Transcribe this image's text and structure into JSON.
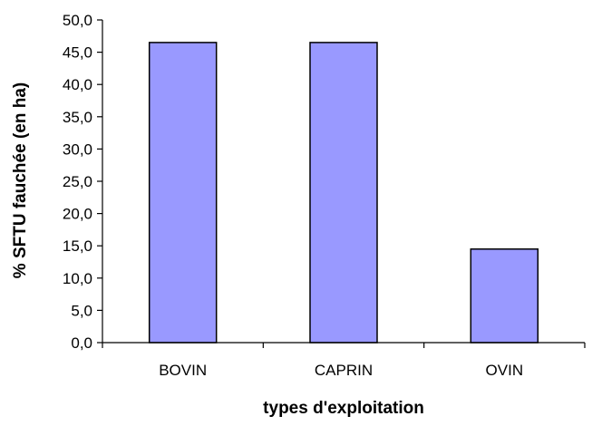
{
  "chart_data": {
    "type": "bar",
    "categories": [
      "BOVIN",
      "CAPRIN",
      "OVIN"
    ],
    "values": [
      46.5,
      46.5,
      14.5
    ],
    "xlabel": "types d'exploitation",
    "ylabel": "% SFTU fauchée (en ha)",
    "ylim": [
      0,
      50
    ],
    "ytick_labels": [
      "0,0",
      "5,0",
      "10,0",
      "15,0",
      "20,0",
      "25,0",
      "30,0",
      "35,0",
      "40,0",
      "45,0",
      "50,0"
    ],
    "grid": false,
    "legend": "none",
    "colors": {
      "bar_fill": "#9999ff",
      "bar_stroke": "#000000",
      "axis": "#000000",
      "text": "#000000"
    }
  }
}
